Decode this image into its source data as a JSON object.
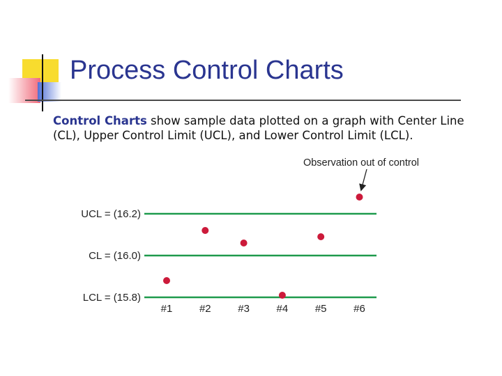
{
  "slide": {
    "title": "Process Control Charts",
    "intro_bold": "Control Charts",
    "intro_rest": " show sample data plotted on a graph with Center Line (CL), Upper Control Limit (UCL), and Lower Control Limit (LCL)."
  },
  "colors": {
    "accent_yellow": "#f8dc2e",
    "accent_pink": "#f06a7a",
    "accent_blue": "#4f6fd6",
    "title_blue": "#2a3590",
    "line_green": "#1e9a4c",
    "point_red": "#cc1a3a"
  },
  "chart_data": {
    "type": "scatter",
    "categories": [
      "#1",
      "#2",
      "#3",
      "#4",
      "#5",
      "#6"
    ],
    "values": [
      15.88,
      16.12,
      16.06,
      15.81,
      16.09,
      16.28
    ],
    "control_lines": [
      {
        "label": "UCL = (16.2)",
        "value": 16.2
      },
      {
        "label": "CL = (16.0)",
        "value": 16.0
      },
      {
        "label": "LCL = (15.8)",
        "value": 15.8
      }
    ],
    "annotation": "Observation out of control",
    "annotation_target_index": 5,
    "title": "",
    "xlabel": "",
    "ylabel": ""
  }
}
